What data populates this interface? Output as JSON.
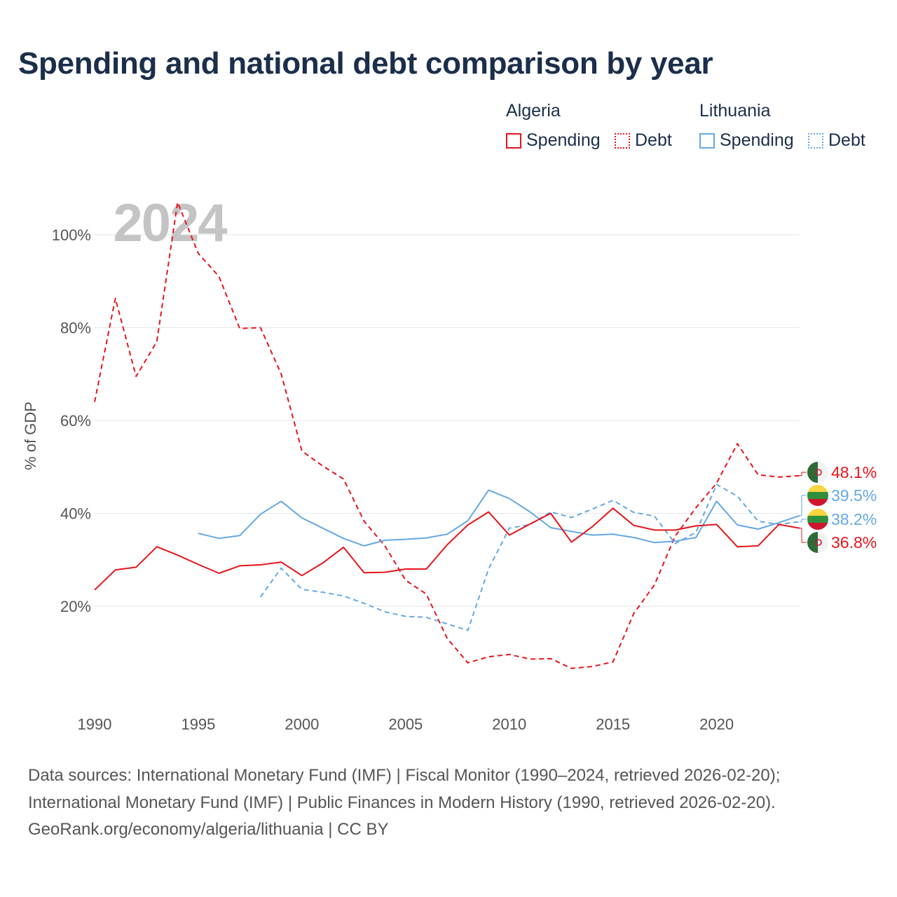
{
  "title": "Spending and national debt comparison by year",
  "legend": {
    "groups": [
      {
        "country": "Algeria",
        "items": [
          {
            "label": "Spending",
            "style": "solid",
            "color": "#e8141c"
          },
          {
            "label": "Debt",
            "style": "dotted",
            "color": "#e8141c"
          }
        ]
      },
      {
        "country": "Lithuania",
        "items": [
          {
            "label": "Spending",
            "style": "solid",
            "color": "#65a8e4"
          },
          {
            "label": "Debt",
            "style": "dotted",
            "color": "#65a8e4"
          }
        ]
      }
    ]
  },
  "chart_data": {
    "type": "line",
    "title": "Spending and national debt comparison by year",
    "watermark_year": "2024",
    "xlabel": "",
    "ylabel": "% of GDP",
    "xlim": [
      1990,
      2024
    ],
    "ylim": [
      0,
      110
    ],
    "x_ticks": [
      1990,
      1995,
      2000,
      2005,
      2010,
      2015,
      2020
    ],
    "y_ticks": [
      {
        "value": 20,
        "label": "20%"
      },
      {
        "value": 40,
        "label": "40%"
      },
      {
        "value": 60,
        "label": "60%"
      },
      {
        "value": 80,
        "label": "80%"
      },
      {
        "value": 100,
        "label": "100%"
      }
    ],
    "grid": true,
    "series": [
      {
        "name": "Algeria Debt",
        "country": "Algeria",
        "metric": "Debt",
        "color": "#e8141c",
        "dash": "dashed",
        "x_start": 1990,
        "values": [
          64,
          86.3,
          69.5,
          77,
          107,
          96,
          91,
          79.8,
          80,
          70,
          53.4,
          50.2,
          47.4,
          38.3,
          33,
          25.6,
          22.6,
          13.1,
          7.8,
          9.1,
          9.6,
          8.6,
          8.7,
          6.6,
          7,
          8,
          18.4,
          24.6,
          35.1,
          41.2,
          46.5,
          55,
          48.3,
          47.8,
          48.1
        ]
      },
      {
        "name": "Lithuania Debt",
        "country": "Lithuania",
        "metric": "Debt",
        "color": "#65a8e4",
        "dash": "dashed",
        "x_start": 1998,
        "values": [
          22,
          28.2,
          23.6,
          23,
          22.2,
          20.6,
          18.8,
          17.8,
          17.6,
          16.2,
          14.8,
          28,
          36.8,
          37.6,
          40.3,
          39.1,
          40.9,
          42.8,
          40.2,
          39.4,
          33.5,
          35.9,
          46.2,
          43.7,
          38.3,
          37.6,
          38.2
        ]
      },
      {
        "name": "Lithuania Spending",
        "country": "Lithuania",
        "metric": "Spending",
        "color": "#65a8e4",
        "dash": "solid",
        "x_start": 1995,
        "values": [
          35.7,
          34.6,
          35.2,
          39.8,
          42.6,
          39,
          36.8,
          34.6,
          33,
          34.2,
          34.4,
          34.7,
          35.5,
          38.4,
          45,
          43.2,
          40.3,
          36.9,
          36.1,
          35.3,
          35.5,
          34.8,
          33.7,
          34,
          34.8,
          42.6,
          37.5,
          36.6,
          38,
          39.5
        ]
      },
      {
        "name": "Algeria Spending",
        "country": "Algeria",
        "metric": "Spending",
        "color": "#e8141c",
        "dash": "solid",
        "x_start": 1990,
        "values": [
          23.5,
          27.8,
          28.4,
          32.8,
          31,
          29,
          27.1,
          28.7,
          28.9,
          29.5,
          26.6,
          29.3,
          32.7,
          27.2,
          27.3,
          28,
          28,
          33.2,
          37.5,
          40.3,
          35.3,
          37.7,
          40,
          33.8,
          37.1,
          41.1,
          37.4,
          36.4,
          36.4,
          37.3,
          37.6,
          32.8,
          33,
          37.6,
          36.8
        ]
      }
    ],
    "end_labels": [
      {
        "label": "48.1%",
        "value": 48.1,
        "country": "Algeria",
        "color": "#e8141c",
        "flag": "algeria"
      },
      {
        "label": "39.5%",
        "value": 39.5,
        "country": "Lithuania",
        "color": "#65a8e4",
        "flag": "lithuania"
      },
      {
        "label": "38.2%",
        "value": 38.2,
        "country": "Lithuania",
        "color": "#65a8e4",
        "flag": "lithuania"
      },
      {
        "label": "36.8%",
        "value": 36.8,
        "country": "Algeria",
        "color": "#e8141c",
        "flag": "algeria"
      }
    ]
  },
  "sources": {
    "line1": "Data sources: International Monetary Fund (IMF) | Fiscal Monitor (1990–2024, retrieved 2026-02-20);",
    "line2": "International Monetary Fund (IMF) | Public Finances in Modern History (1990, retrieved 2026-02-20).",
    "line3": "GeoRank.org/economy/algeria/lithuania | CC BY"
  }
}
